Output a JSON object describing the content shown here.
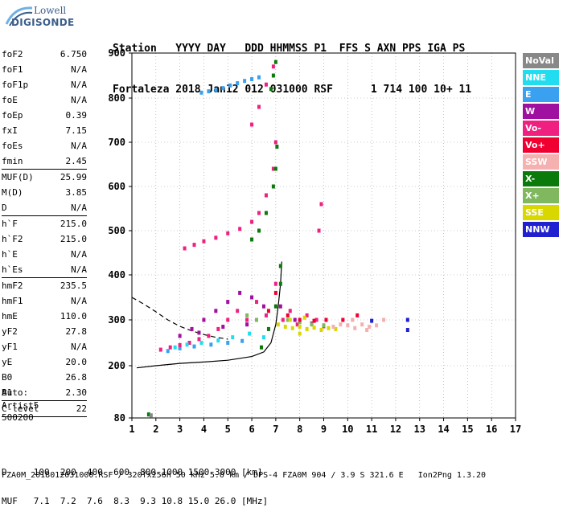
{
  "logo": {
    "line1": "Lowell",
    "line2": "DIGISONDE"
  },
  "header": {
    "row1": "Station   YYYY DAY   DDD HHMMSS P1  FFS S AXN PPS IGA PS",
    "row2": "Fortaleza 2018 Jan12 012 031000 RSF      1 714 100 10+ 11"
  },
  "params": [
    {
      "label": "foF2",
      "value": "6.750",
      "sep": false
    },
    {
      "label": "foF1",
      "value": "N/A",
      "sep": false
    },
    {
      "label": "foF1p",
      "value": "N/A",
      "sep": false
    },
    {
      "label": "foE",
      "value": "N/A",
      "sep": false
    },
    {
      "label": "foEp",
      "value": "0.39",
      "sep": false
    },
    {
      "label": "fxI",
      "value": "7.15",
      "sep": false
    },
    {
      "label": "foEs",
      "value": "N/A",
      "sep": false
    },
    {
      "label": "fmin",
      "value": "2.45",
      "sep": true
    },
    {
      "label": "MUF(D)",
      "value": "25.99",
      "sep": false
    },
    {
      "label": "M(D)",
      "value": "3.85",
      "sep": false
    },
    {
      "label": "D",
      "value": "N/A",
      "sep": true
    },
    {
      "label": "h`F",
      "value": "215.0",
      "sep": false
    },
    {
      "label": "h`F2",
      "value": "215.0",
      "sep": false
    },
    {
      "label": "h`E",
      "value": "N/A",
      "sep": false
    },
    {
      "label": "h`Es",
      "value": "N/A",
      "sep": true
    },
    {
      "label": "hmF2",
      "value": "235.5",
      "sep": false
    },
    {
      "label": "hmF1",
      "value": "N/A",
      "sep": false
    },
    {
      "label": "hmE",
      "value": "110.0",
      "sep": false
    },
    {
      "label": "yF2",
      "value": "27.8",
      "sep": false
    },
    {
      "label": "yF1",
      "value": "N/A",
      "sep": false
    },
    {
      "label": "yE",
      "value": "20.0",
      "sep": false
    },
    {
      "label": "B0",
      "value": "26.8",
      "sep": false
    },
    {
      "label": "B1",
      "value": "2.30",
      "sep": true
    },
    {
      "label": "C-level",
      "value": "22",
      "sep": true
    }
  ],
  "auto": {
    "line1": "Auto:",
    "line2": "Artist5",
    "line3": "500200"
  },
  "legend": [
    {
      "label": "NoVal",
      "color": "#888888"
    },
    {
      "label": "NNE",
      "color": "#22ddf0"
    },
    {
      "label": "E",
      "color": "#3aa0f0"
    },
    {
      "label": "W",
      "color": "#a010a0"
    },
    {
      "label": "Vo-",
      "color": "#f02080"
    },
    {
      "label": "Vo+",
      "color": "#f00030"
    },
    {
      "label": "SSW",
      "color": "#f5b0b0"
    },
    {
      "label": "X-",
      "color": "#0a7a0a"
    },
    {
      "label": "X+",
      "color": "#80b860"
    },
    {
      "label": "SSE",
      "color": "#d8d800"
    },
    {
      "label": "NNW",
      "color": "#2020d0"
    }
  ],
  "footer": {
    "row1": "D     100  200  400  600  800 1000 1500 3000 [km]",
    "row2": "MUF   7.1  7.2  7.6  8.3  9.3 10.8 15.0 26.0 [MHz]",
    "path": "FZA0M_2018012031000.RSF / 320fx256h 50 kHz 5.0 km / DPS-4 FZA0M 904 / 3.9 S 321.6 E   Ion2Png 1.3.20"
  },
  "chart_data": {
    "type": "scatter",
    "title": "",
    "xlabel": "",
    "ylabel": "",
    "xlim": [
      1,
      17
    ],
    "ylim": [
      80,
      900
    ],
    "x_ticks": [
      1,
      2,
      3,
      4,
      5,
      6,
      7,
      8,
      9,
      10,
      11,
      12,
      13,
      14,
      15,
      16,
      17
    ],
    "y_ticks": [
      80,
      200,
      300,
      400,
      500,
      600,
      700,
      800,
      900
    ],
    "grid": true,
    "series": [
      {
        "name": "E",
        "color": "#3aa0f0",
        "points": [
          [
            3.9,
            812
          ],
          [
            4.2,
            815
          ],
          [
            4.5,
            818
          ],
          [
            4.8,
            822
          ],
          [
            5.1,
            828
          ],
          [
            5.4,
            833
          ],
          [
            5.7,
            838
          ],
          [
            6.0,
            842
          ],
          [
            6.3,
            846
          ],
          [
            2.5,
            232
          ],
          [
            3.0,
            238
          ],
          [
            3.6,
            242
          ],
          [
            4.3,
            246
          ],
          [
            5.0,
            250
          ],
          [
            5.6,
            254
          ]
        ]
      },
      {
        "name": "Vo-",
        "color": "#f02080",
        "points": [
          [
            3.2,
            460
          ],
          [
            3.6,
            468
          ],
          [
            4.0,
            476
          ],
          [
            4.5,
            484
          ],
          [
            5.0,
            494
          ],
          [
            5.5,
            504
          ],
          [
            6.0,
            520
          ],
          [
            6.3,
            540
          ],
          [
            6.6,
            580
          ],
          [
            6.9,
            640
          ],
          [
            7.0,
            700
          ],
          [
            6.0,
            740
          ],
          [
            6.3,
            780
          ],
          [
            6.6,
            830
          ],
          [
            6.9,
            870
          ],
          [
            2.2,
            235
          ],
          [
            2.6,
            240
          ],
          [
            3.0,
            245
          ],
          [
            3.4,
            250
          ],
          [
            3.8,
            258
          ],
          [
            4.2,
            265
          ],
          [
            4.6,
            280
          ],
          [
            5.0,
            300
          ],
          [
            5.4,
            320
          ],
          [
            5.8,
            300
          ],
          [
            6.2,
            340
          ],
          [
            6.6,
            310
          ],
          [
            7.0,
            380
          ],
          [
            7.3,
            300
          ],
          [
            7.6,
            320
          ],
          [
            7.9,
            290
          ],
          [
            8.3,
            310
          ],
          [
            8.7,
            300
          ],
          [
            9.0,
            286
          ],
          [
            8.8,
            500
          ],
          [
            8.9,
            560
          ]
        ]
      },
      {
        "name": "W",
        "color": "#a010a0",
        "points": [
          [
            3.5,
            280
          ],
          [
            4.0,
            300
          ],
          [
            4.5,
            320
          ],
          [
            5.0,
            340
          ],
          [
            5.5,
            360
          ],
          [
            6.0,
            350
          ],
          [
            6.5,
            330
          ],
          [
            3.0,
            265
          ],
          [
            3.8,
            272
          ],
          [
            4.8,
            285
          ],
          [
            5.8,
            290
          ],
          [
            7.2,
            330
          ],
          [
            7.8,
            300
          ],
          [
            8.5,
            292
          ]
        ]
      },
      {
        "name": "X-",
        "color": "#0a7a0a",
        "points": [
          [
            6.0,
            480
          ],
          [
            6.3,
            500
          ],
          [
            6.6,
            540
          ],
          [
            6.9,
            600
          ],
          [
            7.0,
            640
          ],
          [
            7.05,
            690
          ],
          [
            6.8,
            820
          ],
          [
            6.9,
            850
          ],
          [
            7.0,
            880
          ],
          [
            6.4,
            240
          ],
          [
            6.7,
            280
          ],
          [
            7.0,
            330
          ],
          [
            7.2,
            380
          ],
          [
            7.2,
            420
          ],
          [
            1.7,
            88
          ]
        ]
      },
      {
        "name": "X+",
        "color": "#80b860",
        "points": [
          [
            7.5,
            300
          ],
          [
            8.0,
            295
          ],
          [
            8.5,
            290
          ],
          [
            9.0,
            288
          ],
          [
            6.2,
            300
          ],
          [
            5.8,
            310
          ]
        ]
      },
      {
        "name": "SSE",
        "color": "#d8d800",
        "points": [
          [
            7.1,
            290
          ],
          [
            7.4,
            285
          ],
          [
            7.7,
            282
          ],
          [
            8.0,
            285
          ],
          [
            8.3,
            280
          ],
          [
            8.6,
            283
          ],
          [
            8.9,
            278
          ],
          [
            9.2,
            282
          ],
          [
            9.5,
            280
          ],
          [
            7.6,
            300
          ],
          [
            8.2,
            305
          ],
          [
            8.0,
            270
          ]
        ]
      },
      {
        "name": "SSW",
        "color": "#f5b0b0",
        "points": [
          [
            9.4,
            285
          ],
          [
            9.7,
            290
          ],
          [
            10.0,
            288
          ],
          [
            10.3,
            282
          ],
          [
            10.6,
            290
          ],
          [
            10.9,
            285
          ],
          [
            11.2,
            288
          ],
          [
            11.5,
            300
          ],
          [
            10.2,
            300
          ],
          [
            10.8,
            278
          ]
        ]
      },
      {
        "name": "Vo+",
        "color": "#f00030",
        "points": [
          [
            7.5,
            310
          ],
          [
            8.0,
            300
          ],
          [
            8.6,
            298
          ],
          [
            9.1,
            300
          ],
          [
            6.7,
            320
          ],
          [
            9.8,
            300
          ],
          [
            10.4,
            310
          ],
          [
            7.0,
            360
          ]
        ]
      },
      {
        "name": "NNE",
        "color": "#22ddf0",
        "points": [
          [
            2.8,
            240
          ],
          [
            3.3,
            246
          ],
          [
            3.9,
            250
          ],
          [
            4.6,
            255
          ],
          [
            5.2,
            262
          ],
          [
            5.9,
            270
          ],
          [
            6.5,
            262
          ]
        ]
      },
      {
        "name": "NNW",
        "color": "#2020d0",
        "points": [
          [
            12.5,
            300
          ],
          [
            12.5,
            278
          ],
          [
            11.0,
            298
          ]
        ]
      },
      {
        "name": "NoVal",
        "color": "#888888",
        "points": [
          [
            1.8,
            86
          ]
        ]
      }
    ],
    "curves": [
      {
        "style": "solid",
        "points": [
          [
            1.2,
            195
          ],
          [
            2.0,
            200
          ],
          [
            3.0,
            205
          ],
          [
            4.0,
            208
          ],
          [
            5.0,
            212
          ],
          [
            6.0,
            220
          ],
          [
            6.5,
            230
          ],
          [
            6.8,
            250
          ],
          [
            7.0,
            290
          ],
          [
            7.1,
            330
          ],
          [
            7.2,
            380
          ],
          [
            7.25,
            430
          ]
        ]
      },
      {
        "style": "dashed",
        "points": [
          [
            1.0,
            350
          ],
          [
            1.5,
            335
          ],
          [
            2.0,
            318
          ],
          [
            2.5,
            300
          ],
          [
            3.0,
            286
          ],
          [
            3.5,
            276
          ],
          [
            4.0,
            268
          ],
          [
            4.5,
            262
          ],
          [
            5.0,
            258
          ]
        ]
      }
    ]
  }
}
